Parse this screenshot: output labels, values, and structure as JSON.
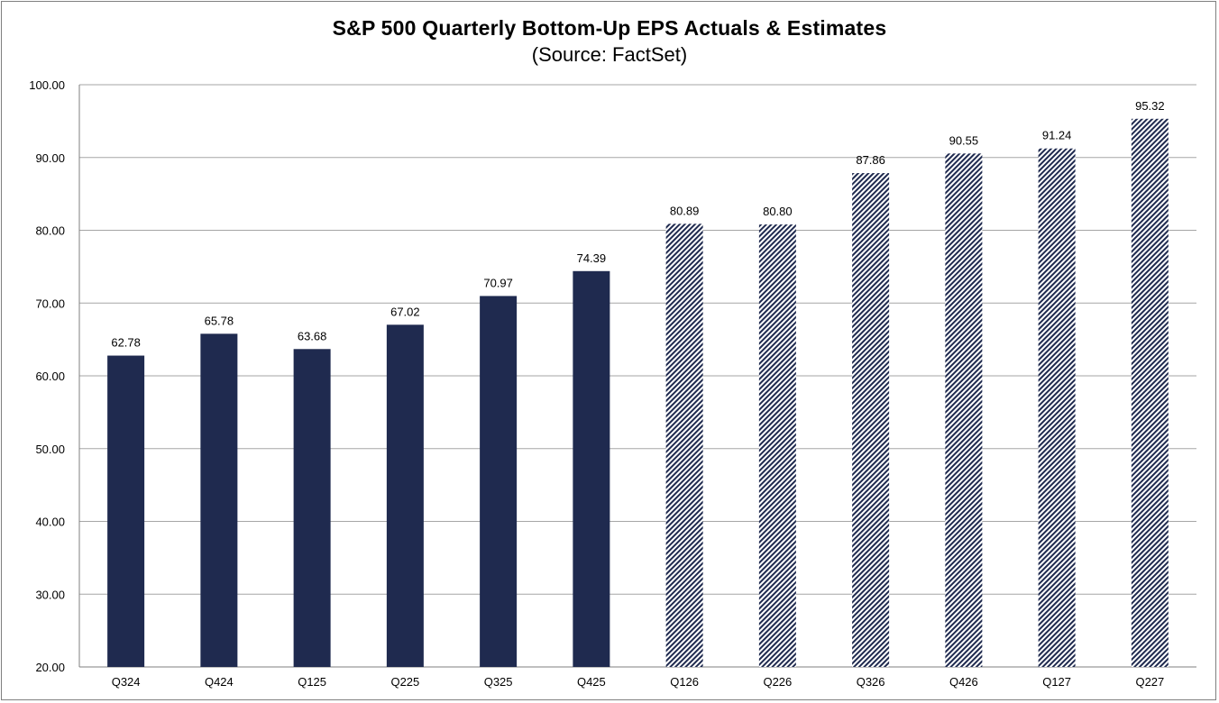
{
  "chart_data": {
    "type": "bar",
    "title": "S&P 500 Quarterly Bottom-Up EPS Actuals & Estimates",
    "subtitle": "(Source: FactSet)",
    "categories": [
      "Q324",
      "Q424",
      "Q125",
      "Q225",
      "Q325",
      "Q425",
      "Q126",
      "Q226",
      "Q326",
      "Q426",
      "Q127",
      "Q227"
    ],
    "values": [
      62.78,
      65.78,
      63.68,
      67.02,
      70.97,
      74.39,
      80.89,
      80.8,
      87.86,
      90.55,
      91.24,
      95.32
    ],
    "value_labels": [
      "62.78",
      "65.78",
      "63.68",
      "67.02",
      "70.97",
      "74.39",
      "80.89",
      "80.80",
      "87.86",
      "90.55",
      "91.24",
      "95.32"
    ],
    "bar_style": [
      "solid",
      "solid",
      "solid",
      "solid",
      "solid",
      "solid",
      "hatched",
      "hatched",
      "hatched",
      "hatched",
      "hatched",
      "hatched"
    ],
    "ylim": [
      20,
      100
    ],
    "y_ticks": [
      "20.00",
      "30.00",
      "40.00",
      "50.00",
      "60.00",
      "70.00",
      "80.00",
      "90.00",
      "100.00"
    ],
    "grid": true,
    "xlabel": "",
    "ylabel": "",
    "colors": {
      "bar": "#1f2a4f",
      "grid": "#a6a6a6",
      "axis": "#7f7f7f"
    }
  }
}
